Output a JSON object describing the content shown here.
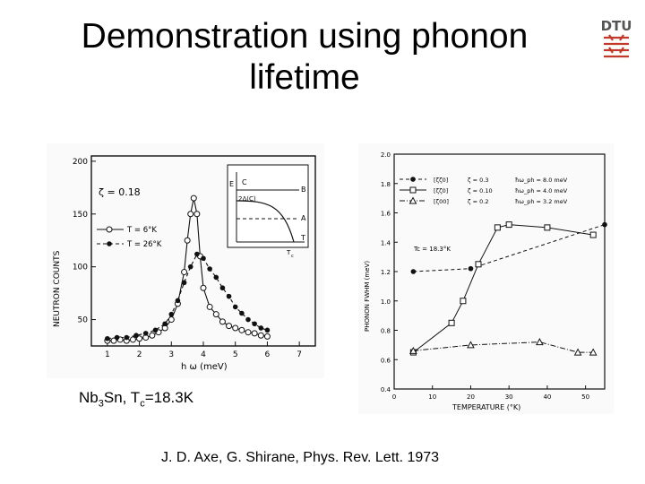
{
  "slide": {
    "title_line1": "Demonstration using phonon",
    "title_line2": "lifetime",
    "logo_text": "DTU",
    "caption_prefix": "Nb",
    "caption_sub1": "3",
    "caption_mid": "Sn, T",
    "caption_sub2": "c",
    "caption_value": "=18.3K",
    "citation": "J. D. Axe, G. Shirane, Phys. Rev. Lett. 1973"
  },
  "colors": {
    "logo": "#c0392b",
    "ink": "#111111",
    "paper": "#ffffff"
  },
  "chart_data": [
    {
      "type": "scatter",
      "xlabel": "h ω (meV)",
      "ylabel": "NEUTRON COUNTS",
      "annotation": "ζ = 0.18",
      "xlim": [
        0.5,
        7.5
      ],
      "ylim": [
        25,
        205
      ],
      "x_ticks": [
        "1",
        "2",
        "3",
        "4",
        "5",
        "6",
        "7"
      ],
      "y_ticks": [
        "50",
        "100",
        "150",
        "200"
      ],
      "series": [
        {
          "name": "T = 6°K",
          "marker": "open-circle",
          "points": [
            [
              1.0,
              30
            ],
            [
              1.2,
              30
            ],
            [
              1.4,
              31
            ],
            [
              1.6,
              30
            ],
            [
              1.8,
              31
            ],
            [
              2.0,
              32
            ],
            [
              2.2,
              33
            ],
            [
              2.4,
              35
            ],
            [
              2.6,
              38
            ],
            [
              2.8,
              42
            ],
            [
              3.0,
              50
            ],
            [
              3.2,
              65
            ],
            [
              3.4,
              95
            ],
            [
              3.5,
              125
            ],
            [
              3.6,
              150
            ],
            [
              3.7,
              165
            ],
            [
              3.8,
              150
            ],
            [
              3.9,
              110
            ],
            [
              4.0,
              80
            ],
            [
              4.2,
              62
            ],
            [
              4.4,
              55
            ],
            [
              4.6,
              48
            ],
            [
              4.8,
              44
            ],
            [
              5.0,
              42
            ],
            [
              5.2,
              40
            ],
            [
              5.4,
              38
            ],
            [
              5.6,
              37
            ],
            [
              5.8,
              35
            ],
            [
              6.0,
              34
            ]
          ]
        },
        {
          "name": "T = 26°K",
          "marker": "filled-circle",
          "points": [
            [
              1.0,
              32
            ],
            [
              1.3,
              33
            ],
            [
              1.6,
              33
            ],
            [
              1.9,
              35
            ],
            [
              2.2,
              37
            ],
            [
              2.5,
              40
            ],
            [
              2.8,
              46
            ],
            [
              3.0,
              55
            ],
            [
              3.2,
              68
            ],
            [
              3.4,
              85
            ],
            [
              3.6,
              100
            ],
            [
              3.8,
              112
            ],
            [
              4.0,
              108
            ],
            [
              4.2,
              98
            ],
            [
              4.4,
              90
            ],
            [
              4.6,
              80
            ],
            [
              4.8,
              72
            ],
            [
              5.0,
              62
            ],
            [
              5.2,
              56
            ],
            [
              5.4,
              50
            ],
            [
              5.6,
              46
            ],
            [
              5.8,
              42
            ],
            [
              6.0,
              40
            ]
          ]
        }
      ],
      "inset": {
        "labels": [
          "E",
          "C",
          "2Δ(C)",
          "B",
          "A",
          "T",
          "T",
          "c"
        ]
      }
    },
    {
      "type": "line",
      "xlabel": "TEMPERATURE (°K)",
      "ylabel": "PHONON FWHM (meV)",
      "annotation": "Tc = 18.3°K",
      "xlim": [
        0,
        55
      ],
      "ylim": [
        0.4,
        2.0
      ],
      "x_ticks": [
        "0",
        "10",
        "20",
        "30",
        "40",
        "50"
      ],
      "y_ticks": [
        "0.4",
        "0.6",
        "0.8",
        "1.0",
        "1.2",
        "1.4",
        "1.6",
        "1.8",
        "2.0"
      ],
      "legend": [
        {
          "dir": "[ζζ0]",
          "zeta": "ζ = 0.3",
          "energy": "ħω_ph = 8.0 meV",
          "marker": "filled-circle"
        },
        {
          "dir": "[ζζ0]",
          "zeta": "ζ = 0.10",
          "energy": "ħω_ph = 4.0 meV",
          "marker": "open-square"
        },
        {
          "dir": "[ζ00]",
          "zeta": "ζ = 0.2",
          "energy": "ħω_ph = 3.2 meV",
          "marker": "open-triangle"
        }
      ],
      "series": [
        {
          "name": "ζ = 0.3",
          "points": [
            [
              5,
              1.2
            ],
            [
              20,
              1.22
            ],
            [
              55,
              1.52
            ]
          ]
        },
        {
          "name": "ζ = 0.10",
          "points": [
            [
              5,
              0.65
            ],
            [
              15,
              0.85
            ],
            [
              18,
              1.0
            ],
            [
              22,
              1.25
            ],
            [
              27,
              1.5
            ],
            [
              30,
              1.52
            ],
            [
              40,
              1.5
            ],
            [
              52,
              1.45
            ]
          ]
        },
        {
          "name": "ζ = 0.2",
          "points": [
            [
              5,
              0.66
            ],
            [
              20,
              0.7
            ],
            [
              38,
              0.72
            ],
            [
              48,
              0.65
            ],
            [
              52,
              0.65
            ]
          ]
        }
      ]
    }
  ]
}
